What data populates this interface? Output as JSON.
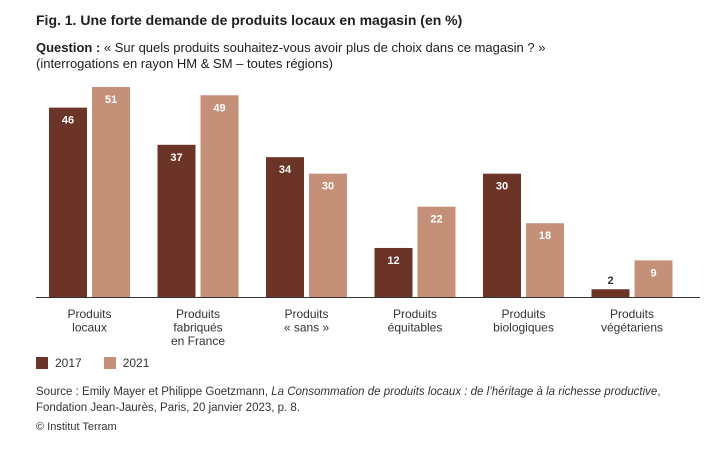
{
  "title": "Fig. 1. Une forte demande de produits locaux en magasin (en %)",
  "question": {
    "label": "Question :",
    "text": " « Sur quels produits souhaitez-vous avoir plus de choix dans ce magasin ? »",
    "subtitle": "(interrogations en rayon HM & SM – toutes régions)"
  },
  "colors": {
    "series_2017": "#6b3427",
    "series_2021": "#c49178",
    "axis": "#333333",
    "bar_label": "#ffffff",
    "category_label": "#333333"
  },
  "chart_data": {
    "type": "bar",
    "categories": [
      [
        "Produits",
        "locaux"
      ],
      [
        "Produits",
        "fabriqués",
        "en France"
      ],
      [
        "Produits",
        "« sans »"
      ],
      [
        "Produits",
        "équitables"
      ],
      [
        "Produits",
        "biologiques"
      ],
      [
        "Produits",
        "végétariens"
      ]
    ],
    "series": [
      {
        "name": "2017",
        "values": [
          46,
          37,
          34,
          12,
          30,
          2
        ]
      },
      {
        "name": "2021",
        "values": [
          51,
          49,
          30,
          22,
          18,
          9
        ]
      }
    ],
    "ylim": [
      0,
      51
    ],
    "grid": false,
    "legend_position": "bottom-left",
    "xlabel": "",
    "ylabel": ""
  },
  "source": {
    "prefix": "Source : Emily Mayer et Philippe Goetzmann, ",
    "work": "La Consommation de produits locaux : de l’héritage à la richesse productive",
    "suffix": ",",
    "line2": "Fondation Jean-Jaurès, Paris, 20 janvier 2023, p. 8."
  },
  "credit": "© Institut Terram"
}
